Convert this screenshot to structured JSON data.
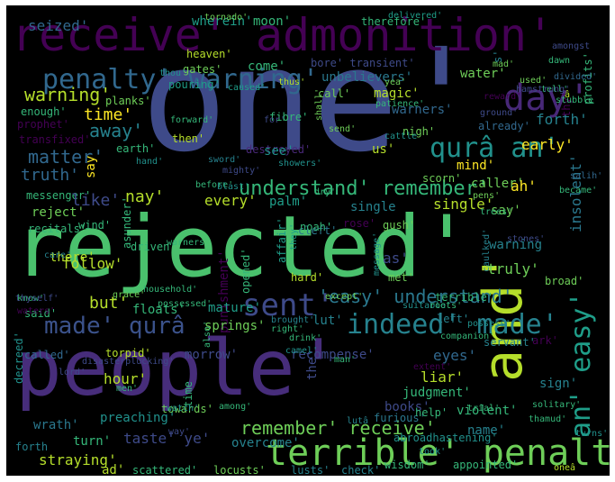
{
  "palette": {
    "purple": "#440154",
    "indigo": "#482878",
    "blue": "#3e4a89",
    "steel": "#31688e",
    "teal": "#26828e",
    "green": "#35b779",
    "lime": "#6ece58",
    "yellow": "#b5de2b",
    "bright": "#fde725"
  },
  "words": [
    {
      "text": "one'",
      "color": "#3e4a89"
    },
    {
      "text": "rejected'",
      "color": "#4ac16d"
    },
    {
      "text": "people'",
      "color": "#472d7b"
    },
    {
      "text": "receive' admonition'",
      "color": "#440154"
    },
    {
      "text": "and'",
      "color": "#b5de2b"
    },
    {
      "text": "terrible' penalty'",
      "color": "#6ece58"
    },
    {
      "text": "day'",
      "color": "#482878"
    },
    {
      "text": "penalty' warning'",
      "color": "#31688e"
    },
    {
      "text": "qurâ an'",
      "color": "#21918c"
    },
    {
      "text": "sent'",
      "color": "#3e4a89"
    },
    {
      "text": "an' easy'",
      "color": "#1f9e89"
    },
    {
      "text": "indeed' made'",
      "color": "#26828e"
    },
    {
      "text": "made' qurâ",
      "color": "#3b528b"
    },
    {
      "text": "understand' remember'",
      "color": "#35b779"
    },
    {
      "text": "'easy' understand'",
      "color": "#2a788e"
    },
    {
      "text": "remember' receive'",
      "color": "#6ece58"
    },
    {
      "text": "warning'",
      "color": "#b5de2b"
    },
    {
      "text": "away'",
      "color": "#26828e"
    },
    {
      "text": "matter'",
      "color": "#31688e"
    },
    {
      "text": "time'",
      "color": "#fde725"
    },
    {
      "text": "seized'",
      "color": "#31688e"
    },
    {
      "text": "wherein'",
      "color": "#1f9e89"
    },
    {
      "text": "moon'",
      "color": "#35b779"
    },
    {
      "text": "therefore'",
      "color": "#35b779"
    },
    {
      "text": "forth'",
      "color": "#26828e"
    },
    {
      "text": "come'",
      "color": "#35b779"
    },
    {
      "text": "unbelievers'",
      "color": "#2a788e"
    },
    {
      "text": "bore' transient'",
      "color": "#3e4a89"
    },
    {
      "text": "heaven'",
      "color": "#b5de2b"
    },
    {
      "text": "gates'",
      "color": "#6ece58"
    },
    {
      "text": "pouring'",
      "color": "#1f9e89"
    },
    {
      "text": "caused'",
      "color": "#1f9e89"
    },
    {
      "text": "call'",
      "color": "#6ece58"
    },
    {
      "text": "magic'",
      "color": "#b5de2b"
    },
    {
      "text": "water'",
      "color": "#6ece58"
    },
    {
      "text": "warners'",
      "color": "#31688e"
    },
    {
      "text": "already'",
      "color": "#31688e"
    },
    {
      "text": "early'",
      "color": "#fde725"
    },
    {
      "text": "mind'",
      "color": "#fde725"
    },
    {
      "text": "caller'",
      "color": "#6ece58"
    },
    {
      "text": "ah'",
      "color": "#fde725"
    },
    {
      "text": "insolent'",
      "color": "#2a788e"
    },
    {
      "text": "destroyed'",
      "color": "#482878"
    },
    {
      "text": "see'",
      "color": "#21918c"
    },
    {
      "text": "fibre'",
      "color": "#35b779"
    },
    {
      "text": "then'",
      "color": "#b5de2b"
    },
    {
      "text": "earth'",
      "color": "#35b779"
    },
    {
      "text": "messenger'",
      "color": "#35b779"
    },
    {
      "text": "truth'",
      "color": "#31688e"
    },
    {
      "text": "reject'",
      "color": "#6ece58"
    },
    {
      "text": "recitals'",
      "color": "#35b779"
    },
    {
      "text": "like'",
      "color": "#3e4a89"
    },
    {
      "text": "nay'",
      "color": "#b5de2b"
    },
    {
      "text": "every'",
      "color": "#b5de2b"
    },
    {
      "text": "palm'",
      "color": "#1f9e89"
    },
    {
      "text": "single'",
      "color": "#b5de2b"
    },
    {
      "text": "truly'",
      "color": "#6ece58"
    },
    {
      "text": "warning",
      "color": "#26828e"
    },
    {
      "text": "follow'",
      "color": "#b5de2b"
    },
    {
      "text": "but'",
      "color": "#b5de2b"
    },
    {
      "text": "punishment'",
      "color": "#440154"
    },
    {
      "text": "floats'",
      "color": "#35b779"
    },
    {
      "text": "said'",
      "color": "#35b779"
    },
    {
      "text": "lut'",
      "color": "#26828e"
    },
    {
      "text": "called'",
      "color": "#31688e"
    },
    {
      "text": "torpid'",
      "color": "#b5de2b"
    },
    {
      "text": "morrow'",
      "color": "#3e4a89"
    },
    {
      "text": "recompense'",
      "color": "#3e4a89"
    },
    {
      "text": "eyes'",
      "color": "#31688e"
    },
    {
      "text": "liar'",
      "color": "#b5de2b"
    },
    {
      "text": "sign'",
      "color": "#26828e"
    },
    {
      "text": "judgment'",
      "color": "#35b779"
    },
    {
      "text": "books'",
      "color": "#3e4a89"
    },
    {
      "text": "violent'",
      "color": "#35b779"
    },
    {
      "text": "hour'",
      "color": "#b5de2b"
    },
    {
      "text": "wrath'",
      "color": "#2a788e"
    },
    {
      "text": "preaching'",
      "color": "#21918c"
    },
    {
      "text": "taste' ye'",
      "color": "#3e4a89"
    },
    {
      "text": "name'",
      "color": "#26828e"
    },
    {
      "text": "turn'",
      "color": "#35b779"
    },
    {
      "text": "overcome'",
      "color": "#26828e"
    },
    {
      "text": "straying'",
      "color": "#b5de2b"
    },
    {
      "text": "scattered'",
      "color": "#35b779"
    },
    {
      "text": "locusts'",
      "color": "#6ece58"
    },
    {
      "text": "lusts'",
      "color": "#26828e"
    },
    {
      "text": "check'",
      "color": "#26828e"
    },
    {
      "text": "wisdom'",
      "color": "#35b779"
    },
    {
      "text": "appointed'",
      "color": "#35b779"
    },
    {
      "text": "abroadhastening'",
      "color": "#21918c"
    },
    {
      "text": "furious'",
      "color": "#2a788e"
    },
    {
      "text": "the'",
      "color": "#3e4a89"
    },
    {
      "text": "cleft'",
      "color": "#2a788e"
    },
    {
      "text": "as'",
      "color": "#3e4a89"
    },
    {
      "text": "there'",
      "color": "#b5de2b"
    },
    {
      "text": "affair'",
      "color": "#1f9e89"
    },
    {
      "text": "they'",
      "color": "#1f9e89"
    },
    {
      "text": "noah'",
      "color": "#35b779"
    },
    {
      "text": "hard'",
      "color": "#b5de2b"
    },
    {
      "text": "met'",
      "color": "#6ece58"
    },
    {
      "text": "broad'",
      "color": "#6ece58"
    },
    {
      "text": "terrible'",
      "color": "#35b779"
    },
    {
      "text": "left'",
      "color": "#26828e"
    },
    {
      "text": "servant'",
      "color": "#26828e"
    },
    {
      "text": "ark'",
      "color": "#440154"
    },
    {
      "text": "possessed'",
      "color": "#35b779"
    },
    {
      "text": "mature'",
      "color": "#1f9e89"
    },
    {
      "text": "springs'",
      "color": "#6ece58"
    },
    {
      "text": "towards'",
      "color": "#6ece58"
    },
    {
      "text": "lord'",
      "color": "#3e4a89"
    },
    {
      "text": "driven'",
      "color": "#35b779"
    },
    {
      "text": "asunder'",
      "color": "#35b779"
    },
    {
      "text": "before'",
      "color": "#35b779"
    },
    {
      "text": "care'",
      "color": "#26828e"
    },
    {
      "text": "prophet'",
      "color": "#440154"
    },
    {
      "text": "enough'",
      "color": "#35b779"
    },
    {
      "text": "transfixed'",
      "color": "#440154"
    },
    {
      "text": "planks'",
      "color": "#6ece58"
    },
    {
      "text": "decreed'",
      "color": "#21918c"
    },
    {
      "text": "gush'",
      "color": "#6ece58"
    },
    {
      "text": "rose'",
      "color": "#440154"
    },
    {
      "text": "scorn'",
      "color": "#6ece58"
    },
    {
      "text": "nigh'",
      "color": "#6ece58"
    },
    {
      "text": "opened'",
      "color": "#35b779"
    },
    {
      "text": "time",
      "color": "#35b779"
    },
    {
      "text": "help'",
      "color": "#35b779"
    },
    {
      "text": "extent'",
      "color": "#440154"
    },
    {
      "text": "trial'",
      "color": "#35b779"
    },
    {
      "text": "forth",
      "color": "#26828e"
    },
    {
      "text": "ad'",
      "color": "#b5de2b"
    },
    {
      "text": "say'",
      "color": "#6ece58"
    },
    {
      "text": "say",
      "color": "#fde725"
    },
    {
      "text": "us'",
      "color": "#b5de2b"
    },
    {
      "text": "wind'",
      "color": "#35b779"
    },
    {
      "text": "thy'",
      "color": "#440154"
    },
    {
      "text": "profits'",
      "color": "#35b779"
    },
    {
      "text": "s'",
      "color": "#26828e"
    },
    {
      "text": "tornado'",
      "color": "#6ece58"
    },
    {
      "text": "delivered'",
      "color": "#1f9e89"
    },
    {
      "text": "stones'",
      "color": "#3e4a89"
    },
    {
      "text": "caulked'",
      "color": "#26828e"
    },
    {
      "text": "message'",
      "color": "#21918c"
    },
    {
      "text": "except'",
      "color": "#6ece58"
    },
    {
      "text": "suitable'",
      "color": "#21918c"
    },
    {
      "text": "roots'",
      "color": "#35b779"
    },
    {
      "text": "possess'",
      "color": "#21918c"
    },
    {
      "text": "companion'",
      "color": "#35b779"
    },
    {
      "text": "drink'",
      "color": "#35b779"
    },
    {
      "text": "camel'",
      "color": "#21918c"
    },
    {
      "text": "brought'",
      "color": "#26828e"
    },
    {
      "text": "right'",
      "color": "#35b779"
    },
    {
      "text": "also'",
      "color": "#35b779"
    },
    {
      "text": "grace'",
      "color": "#6ece58"
    },
    {
      "text": "household'",
      "color": "#35b779"
    },
    {
      "text": "warners",
      "color": "#35b779"
    },
    {
      "text": "know'",
      "color": "#35b779"
    },
    {
      "text": "waters'",
      "color": "#440154"
    },
    {
      "text": "thyself'",
      "color": "#3e4a89"
    },
    {
      "text": "disasterplucking'",
      "color": "#3e4a89"
    },
    {
      "text": "men'",
      "color": "#35b779"
    },
    {
      "text": "watch'",
      "color": "#21918c"
    },
    {
      "text": "way'",
      "color": "#3e4a89"
    },
    {
      "text": "among'",
      "color": "#35b779"
    },
    {
      "text": "lutâ",
      "color": "#26828e"
    },
    {
      "text": "took'",
      "color": "#21918c"
    },
    {
      "text": "solitary'",
      "color": "#35b779"
    },
    {
      "text": "thamud'",
      "color": "#35b779"
    },
    {
      "text": "turns'",
      "color": "#21918c"
    },
    {
      "text": "oneâ",
      "color": "#b5de2b"
    },
    {
      "text": "man'",
      "color": "#35b779"
    },
    {
      "text": "forward'",
      "color": "#35b779"
    },
    {
      "text": "hand'",
      "color": "#21918c"
    },
    {
      "text": "mighty'",
      "color": "#3e4a89"
    },
    {
      "text": "blast'",
      "color": "#21918c"
    },
    {
      "text": "dry'",
      "color": "#35b779"
    },
    {
      "text": "sword'",
      "color": "#26828e"
    },
    {
      "text": "showers'",
      "color": "#21918c"
    },
    {
      "text": "for'",
      "color": "#3e4a89"
    },
    {
      "text": "send'",
      "color": "#6ece58"
    },
    {
      "text": "shall'",
      "color": "#6ece58"
    },
    {
      "text": "cattle",
      "color": "#21918c"
    },
    {
      "text": "pens'",
      "color": "#6ece58"
    },
    {
      "text": "trees'",
      "color": "#35b779"
    },
    {
      "text": "became'",
      "color": "#35b779"
    },
    {
      "text": "salih'",
      "color": "#31688e"
    },
    {
      "text": "stubble",
      "color": "#35b779"
    },
    {
      "text": "divided'",
      "color": "#31688e"
    },
    {
      "text": "â",
      "color": "#b5de2b"
    },
    {
      "text": "tell'",
      "color": "#35b779"
    },
    {
      "text": "mad'",
      "color": "#6ece58"
    },
    {
      "text": "reward'",
      "color": "#440154"
    },
    {
      "text": "ground'",
      "color": "#3e4a89"
    },
    {
      "text": "patience'",
      "color": "#35b779"
    },
    {
      "text": "yea'",
      "color": "#6ece58"
    },
    {
      "text": "thus'",
      "color": "#b5de2b"
    },
    {
      "text": "thou'",
      "color": "#21918c"
    },
    {
      "text": "used'",
      "color": "#6ece58"
    },
    {
      "text": "hamstrung'",
      "color": "#3e4a89"
    },
    {
      "text": "dawn",
      "color": "#35b779"
    },
    {
      "text": "amongst",
      "color": "#3e4a89"
    },
    {
      "text": "single",
      "color": "#26828e"
    }
  ]
}
